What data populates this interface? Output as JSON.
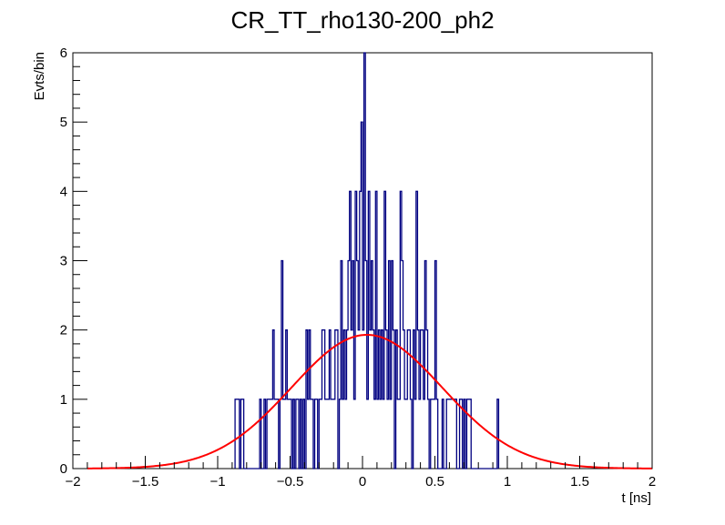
{
  "chart_data": {
    "type": "histogram",
    "title": "CR_TT_rho130-200_ph2",
    "xlabel": "t [ns]",
    "ylabel": "Evts/bin",
    "xlim": [
      -2,
      2
    ],
    "ylim": [
      0,
      6
    ],
    "x_ticks": [
      -2,
      -1.5,
      -1,
      -0.5,
      0,
      0.5,
      1,
      1.5,
      2
    ],
    "x_tick_labels": [
      "−2",
      "−1.5",
      "−1",
      "−0.5",
      "0",
      "0.5",
      "1",
      "1.5",
      "2"
    ],
    "y_ticks": [
      0,
      1,
      2,
      3,
      4,
      5,
      6
    ],
    "y_tick_labels": [
      "0",
      "1",
      "2",
      "3",
      "4",
      "5",
      "6"
    ],
    "bin_width": 0.01,
    "series": [
      {
        "name": "histogram",
        "color": "#000080",
        "bins": [
          [
            -0.88,
            1
          ],
          [
            -0.87,
            1
          ],
          [
            -0.86,
            1
          ],
          [
            -0.84,
            1
          ],
          [
            -0.83,
            1
          ],
          [
            -0.71,
            1
          ],
          [
            -0.68,
            1
          ],
          [
            -0.66,
            1
          ],
          [
            -0.65,
            1
          ],
          [
            -0.64,
            1
          ],
          [
            -0.63,
            1
          ],
          [
            -0.62,
            2
          ],
          [
            -0.61,
            1
          ],
          [
            -0.6,
            1
          ],
          [
            -0.59,
            1
          ],
          [
            -0.57,
            1
          ],
          [
            -0.56,
            3
          ],
          [
            -0.55,
            1
          ],
          [
            -0.54,
            1
          ],
          [
            -0.53,
            2
          ],
          [
            -0.52,
            1
          ],
          [
            -0.51,
            1
          ],
          [
            -0.5,
            1
          ],
          [
            -0.48,
            1
          ],
          [
            -0.46,
            1
          ],
          [
            -0.45,
            1
          ],
          [
            -0.43,
            1
          ],
          [
            -0.41,
            1
          ],
          [
            -0.39,
            2
          ],
          [
            -0.38,
            1
          ],
          [
            -0.37,
            2
          ],
          [
            -0.36,
            1
          ],
          [
            -0.35,
            1
          ],
          [
            -0.33,
            1
          ],
          [
            -0.32,
            1
          ],
          [
            -0.3,
            1
          ],
          [
            -0.29,
            1
          ],
          [
            -0.28,
            2
          ],
          [
            -0.27,
            2
          ],
          [
            -0.26,
            1
          ],
          [
            -0.25,
            1
          ],
          [
            -0.24,
            1
          ],
          [
            -0.23,
            2
          ],
          [
            -0.22,
            1
          ],
          [
            -0.21,
            1
          ],
          [
            -0.2,
            1
          ],
          [
            -0.19,
            2
          ],
          [
            -0.18,
            2
          ],
          [
            -0.16,
            1
          ],
          [
            -0.15,
            3
          ],
          [
            -0.14,
            1
          ],
          [
            -0.13,
            2
          ],
          [
            -0.12,
            1
          ],
          [
            -0.11,
            2
          ],
          [
            -0.1,
            3
          ],
          [
            -0.09,
            4
          ],
          [
            -0.08,
            2
          ],
          [
            -0.07,
            3
          ],
          [
            -0.06,
            1
          ],
          [
            -0.05,
            4
          ],
          [
            -0.04,
            3
          ],
          [
            -0.03,
            2
          ],
          [
            -0.02,
            4
          ],
          [
            -0.01,
            5
          ],
          [
            0.0,
            2
          ],
          [
            0.01,
            6
          ],
          [
            0.02,
            3
          ],
          [
            0.03,
            1
          ],
          [
            0.04,
            4
          ],
          [
            0.05,
            2
          ],
          [
            0.06,
            3
          ],
          [
            0.07,
            2
          ],
          [
            0.08,
            1
          ],
          [
            0.09,
            4
          ],
          [
            0.1,
            1
          ],
          [
            0.11,
            2
          ],
          [
            0.12,
            1
          ],
          [
            0.13,
            2
          ],
          [
            0.14,
            1
          ],
          [
            0.15,
            4
          ],
          [
            0.16,
            2
          ],
          [
            0.17,
            1
          ],
          [
            0.18,
            3
          ],
          [
            0.19,
            1
          ],
          [
            0.2,
            3
          ],
          [
            0.21,
            2
          ],
          [
            0.23,
            2
          ],
          [
            0.24,
            1
          ],
          [
            0.25,
            1
          ],
          [
            0.26,
            4
          ],
          [
            0.27,
            3
          ],
          [
            0.28,
            2
          ],
          [
            0.29,
            1
          ],
          [
            0.3,
            1
          ],
          [
            0.31,
            2
          ],
          [
            0.32,
            2
          ],
          [
            0.33,
            1
          ],
          [
            0.35,
            2
          ],
          [
            0.36,
            1
          ],
          [
            0.37,
            4
          ],
          [
            0.38,
            2
          ],
          [
            0.39,
            1
          ],
          [
            0.4,
            2
          ],
          [
            0.41,
            2
          ],
          [
            0.42,
            1
          ],
          [
            0.43,
            3
          ],
          [
            0.44,
            2
          ],
          [
            0.45,
            1
          ],
          [
            0.47,
            1
          ],
          [
            0.48,
            1
          ],
          [
            0.49,
            1
          ],
          [
            0.5,
            3
          ],
          [
            0.51,
            1
          ],
          [
            0.55,
            1
          ],
          [
            0.58,
            1
          ],
          [
            0.59,
            1
          ],
          [
            0.6,
            1
          ],
          [
            0.61,
            1
          ],
          [
            0.62,
            1
          ],
          [
            0.63,
            1
          ],
          [
            0.64,
            1
          ],
          [
            0.67,
            1
          ],
          [
            0.68,
            1
          ],
          [
            0.7,
            1
          ],
          [
            0.72,
            1
          ],
          [
            0.73,
            1
          ],
          [
            0.74,
            1
          ],
          [
            0.93,
            1
          ]
        ]
      },
      {
        "name": "gaussian-fit",
        "color": "#ff0000",
        "function": "gaussian",
        "amplitude": 1.93,
        "mean": 0.03,
        "sigma": 0.52,
        "x_range": [
          -1.9,
          2.0
        ]
      }
    ]
  }
}
